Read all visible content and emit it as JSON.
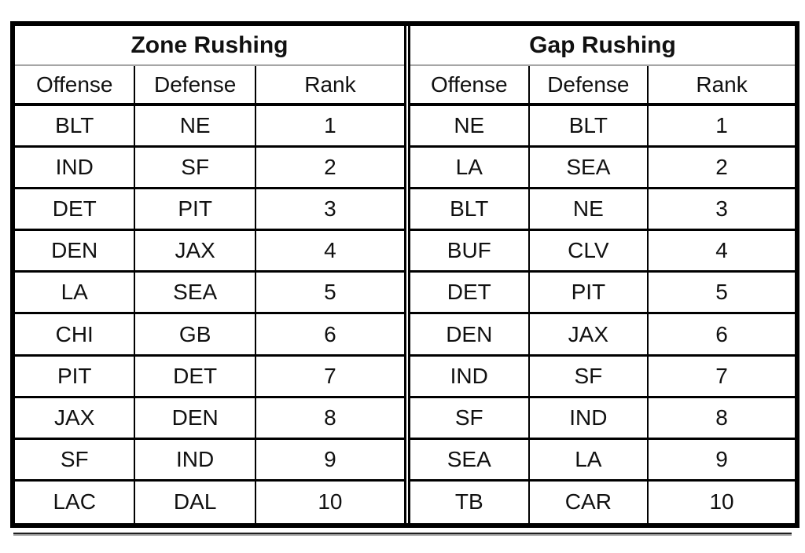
{
  "chart_data": [
    {
      "type": "table",
      "title": "Zone Rushing",
      "columns": [
        "Offense",
        "Defense",
        "Rank"
      ],
      "rows": [
        [
          "BLT",
          "NE",
          "1"
        ],
        [
          "IND",
          "SF",
          "2"
        ],
        [
          "DET",
          "PIT",
          "3"
        ],
        [
          "DEN",
          "JAX",
          "4"
        ],
        [
          "LA",
          "SEA",
          "5"
        ],
        [
          "CHI",
          "GB",
          "6"
        ],
        [
          "PIT",
          "DET",
          "7"
        ],
        [
          "JAX",
          "DEN",
          "8"
        ],
        [
          "SF",
          "IND",
          "9"
        ],
        [
          "LAC",
          "DAL",
          "10"
        ]
      ]
    },
    {
      "type": "table",
      "title": "Gap Rushing",
      "columns": [
        "Offense",
        "Defense",
        "Rank"
      ],
      "rows": [
        [
          "NE",
          "BLT",
          "1"
        ],
        [
          "LA",
          "SEA",
          "2"
        ],
        [
          "BLT",
          "NE",
          "3"
        ],
        [
          "BUF",
          "CLV",
          "4"
        ],
        [
          "DET",
          "PIT",
          "5"
        ],
        [
          "DEN",
          "JAX",
          "6"
        ],
        [
          "IND",
          "SF",
          "7"
        ],
        [
          "SF",
          "IND",
          "8"
        ],
        [
          "SEA",
          "LA",
          "9"
        ],
        [
          "TB",
          "CAR",
          "10"
        ]
      ]
    }
  ],
  "colors": {
    "border": "#000000",
    "text": "#111111",
    "title_separator": "#a6a6a6",
    "bottom_rule_dark": "#1f1f1f",
    "bottom_rule_light": "#9e9e9e",
    "background": "#ffffff"
  }
}
